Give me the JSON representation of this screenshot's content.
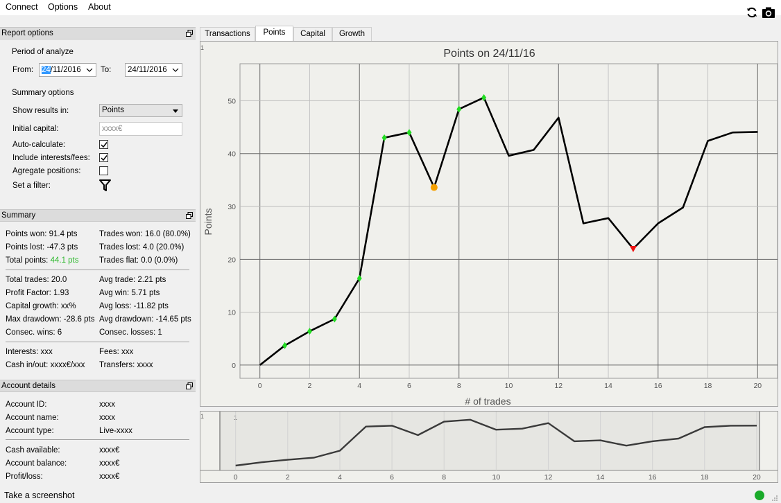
{
  "menu": {
    "connect": "Connect",
    "options": "Options",
    "about": "About"
  },
  "toolbar": {
    "refresh_icon": "refresh-icon",
    "screenshot_icon": "camera-icon"
  },
  "report_options": {
    "title": "Report options",
    "period_label": "Period of analyze",
    "from_label": "From:",
    "from_day_selected": "24",
    "from_rest": "/11/2016",
    "to_label": "To:",
    "to_value": "24/11/2016",
    "summary_options_label": "Summary options",
    "show_results_label": "Show results in:",
    "show_results_value": "Points",
    "initial_capital_label": "Initial capital:",
    "initial_capital_placeholder": "xxxx€",
    "auto_calc_label": "Auto-calculate:",
    "auto_calc_checked": true,
    "include_fees_label": "Include interests/fees:",
    "include_fees_checked": true,
    "aggregate_label": "Agregate positions:",
    "aggregate_checked": false,
    "filter_label": "Set a filter:"
  },
  "summary": {
    "title": "Summary",
    "points_won": "Points won: 91.4 pts",
    "trades_won": "Trades won: 16.0 (80.0%)",
    "points_lost": "Points lost: -47.3 pts",
    "trades_lost": "Trades lost: 4.0 (20.0%)",
    "total_points_label": "Total points:",
    "total_points_value": "44.1 pts",
    "trades_flat": "Trades flat: 0.0 (0.0%)",
    "total_trades": "Total trades: 20.0",
    "avg_trade": "Avg trade: 2.21 pts",
    "profit_factor": "Profit Factor: 1.93",
    "avg_win": "Avg win: 5.71 pts",
    "capital_growth": "Capital growth: xx%",
    "avg_loss": "Avg loss: -11.82 pts",
    "max_drawdown": "Max drawdown: -28.6 pts",
    "avg_drawdown": "Avg drawdown: -14.65 pts",
    "consec_wins": "Consec. wins: 6",
    "consec_losses": "Consec. losses: 1",
    "interests": "Interests: xxx",
    "fees": "Fees: xxx",
    "cash_inout": "Cash in/out: xxxx€/xxx",
    "transfers": "Transfers: xxxx",
    "positive_color": "#2db82d"
  },
  "account": {
    "title": "Account details",
    "id_label": "Account ID:",
    "id_value": "xxxx",
    "name_label": "Account name:",
    "name_value": "xxxx",
    "type_label": "Account type:",
    "type_value": "Live-xxxx",
    "cash_label": "Cash available:",
    "cash_value": "xxxx€",
    "balance_label": "Account balance:",
    "balance_value": "xxxx€",
    "pl_label": "Profit/loss:",
    "pl_value": "xxxx€"
  },
  "tabs": [
    {
      "label": "Transactions",
      "active": false
    },
    {
      "label": "Points",
      "active": true
    },
    {
      "label": "Capital",
      "active": false
    },
    {
      "label": "Growth",
      "active": false
    }
  ],
  "chart_data": {
    "type": "line",
    "title": "Points on 24/11/16",
    "xlabel": "# of trades",
    "ylabel": "Points",
    "x": [
      0,
      1,
      2,
      3,
      4,
      5,
      6,
      7,
      8,
      9,
      10,
      11,
      12,
      13,
      14,
      15,
      16,
      17,
      18,
      19,
      20
    ],
    "y": [
      0,
      3.7,
      6.4,
      8.7,
      16.4,
      43.0,
      44.0,
      33.6,
      48.4,
      50.6,
      39.6,
      40.7,
      46.8,
      26.8,
      27.8,
      22.0,
      26.8,
      29.8,
      42.4,
      44.0,
      44.1
    ],
    "xlim": [
      -0.8,
      20.8
    ],
    "ylim": [
      -2.5,
      57
    ],
    "xticks": [
      0,
      2,
      4,
      6,
      8,
      10,
      12,
      14,
      16,
      18,
      20
    ],
    "yticks": [
      0,
      10,
      20,
      30,
      40,
      50
    ],
    "win_marker_indices": [
      1,
      2,
      3,
      4,
      5,
      6,
      8,
      9
    ],
    "neutral_marker_indices": [
      7
    ],
    "loss_marker_indices": [
      15
    ],
    "win_color": "#22dd22",
    "neutral_color": "#f5a000",
    "loss_color": "#ee1111",
    "grid": true,
    "corner_label": "1"
  },
  "overview_chart": {
    "xticks": [
      0,
      2,
      4,
      6,
      8,
      10,
      12,
      14,
      16,
      18,
      20
    ],
    "corner_label": "1"
  },
  "status": {
    "text": "Take a screenshot",
    "connection_color": "#1aaa2a"
  }
}
